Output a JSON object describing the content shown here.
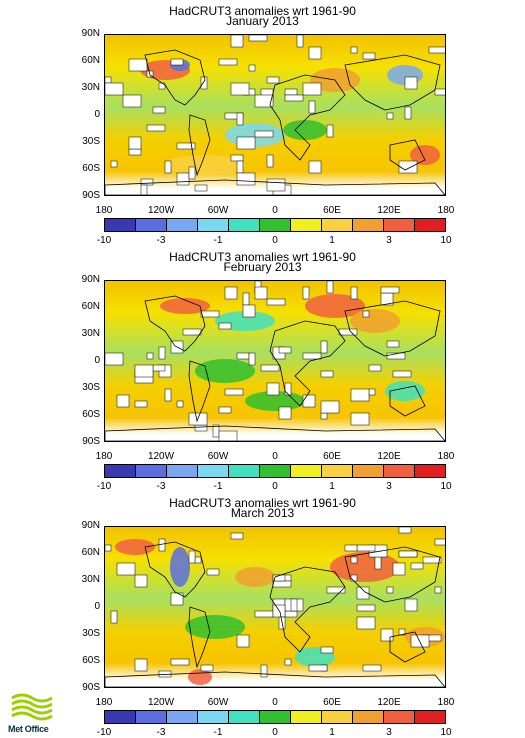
{
  "panels": [
    {
      "title": "HadCRUT3 anomalies wrt 1961-90",
      "subtitle": "January 2013"
    },
    {
      "title": "HadCRUT3 anomalies wrt 1961-90",
      "subtitle": "February 2013"
    },
    {
      "title": "HadCRUT3 anomalies wrt 1961-90",
      "subtitle": "March 2013"
    }
  ],
  "lat_labels": [
    "90N",
    "60N",
    "30N",
    "0",
    "30S",
    "60S",
    "90S"
  ],
  "lon_labels": [
    "180",
    "120W",
    "60W",
    "0",
    "60E",
    "120E",
    "180"
  ],
  "colorbar": {
    "colors": [
      "#3a3ab0",
      "#5a6ee0",
      "#7aa8f0",
      "#7ad8f0",
      "#40e0c0",
      "#30c030",
      "#f0f020",
      "#f8d040",
      "#f0a030",
      "#f06040",
      "#e02020"
    ],
    "labels": [
      "-10",
      "-3",
      "-1",
      "0",
      "1",
      "3",
      "10"
    ]
  },
  "logo": {
    "text": "Met Office",
    "color": "#9ad000"
  }
}
